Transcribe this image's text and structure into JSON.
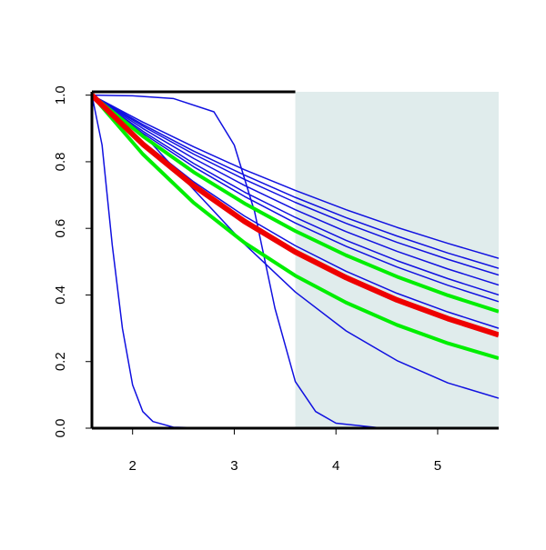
{
  "chart_data": {
    "type": "line",
    "xlim": [
      1.6,
      5.6
    ],
    "ylim": [
      0,
      1.01
    ],
    "xticks": [
      2,
      3,
      4,
      5
    ],
    "yticks": [
      {
        "value": 0,
        "label": "0.0"
      },
      0.2,
      0.4,
      0.6,
      0.8,
      {
        "value": 1,
        "label": "1.0"
      }
    ],
    "shaded_region": {
      "x": [
        3.6,
        5.6
      ],
      "color": "#e0ecec"
    },
    "series": [
      {
        "color": "#1010e0",
        "width": 1.5,
        "x": [
          1.6,
          2.1,
          2.6,
          3.1,
          3.6,
          4.1,
          4.6,
          5.1,
          5.6
        ],
        "values": [
          1,
          0.919,
          0.845,
          0.776,
          0.714,
          0.656,
          0.603,
          0.555,
          0.51
        ]
      },
      {
        "color": "#1010e0",
        "width": 1.5,
        "x": [
          1.6,
          2.1,
          2.6,
          3.1,
          3.6,
          4.1,
          4.6,
          5.1,
          5.6
        ],
        "values": [
          1,
          0.912,
          0.832,
          0.76,
          0.693,
          0.632,
          0.577,
          0.526,
          0.48
        ]
      },
      {
        "color": "#1010e0",
        "width": 1.5,
        "x": [
          1.6,
          2.1,
          2.6,
          3.1,
          3.6,
          4.1,
          4.6,
          5.1,
          5.6
        ],
        "values": [
          1,
          0.907,
          0.823,
          0.747,
          0.678,
          0.615,
          0.558,
          0.507,
          0.46
        ]
      },
      {
        "color": "#1010e0",
        "width": 1.5,
        "x": [
          1.6,
          2.1,
          2.6,
          3.1,
          3.6,
          4.1,
          4.6,
          5.1,
          5.6
        ],
        "values": [
          1,
          0.9,
          0.81,
          0.729,
          0.656,
          0.59,
          0.531,
          0.478,
          0.43
        ]
      },
      {
        "color": "#1010e0",
        "width": 1.5,
        "x": [
          1.6,
          2.1,
          2.6,
          3.1,
          3.6,
          4.1,
          4.6,
          5.1,
          5.6
        ],
        "values": [
          1,
          0.892,
          0.795,
          0.709,
          0.633,
          0.564,
          0.503,
          0.449,
          0.4
        ]
      },
      {
        "color": "#1010e0",
        "width": 1.5,
        "x": [
          1.6,
          2.1,
          2.6,
          3.1,
          3.6,
          4.1,
          4.6,
          5.1,
          5.6
        ],
        "values": [
          1,
          0.886,
          0.785,
          0.696,
          0.616,
          0.546,
          0.484,
          0.429,
          0.38
        ]
      },
      {
        "color": "#1010e0",
        "width": 1.5,
        "x": [
          1.6,
          2.1,
          2.6,
          3.1,
          3.6,
          4.1,
          4.6,
          5.1,
          5.6
        ],
        "values": [
          1,
          0.86,
          0.74,
          0.637,
          0.548,
          0.471,
          0.405,
          0.349,
          0.3
        ]
      },
      {
        "color": "#1010e0",
        "width": 1.5,
        "x": [
          1.6,
          2.1,
          2.6,
          3.1,
          3.6,
          4.1,
          4.6,
          5.1,
          5.6
        ],
        "values": [
          1,
          0.884,
          0.717,
          0.553,
          0.409,
          0.292,
          0.203,
          0.136,
          0.09
        ]
      },
      {
        "color": "#1010e0",
        "width": 1.5,
        "x": [
          1.6,
          1.7,
          1.8,
          1.9,
          2.0,
          2.1,
          2.2,
          2.4,
          2.8,
          5.6
        ],
        "values": [
          1,
          0.85,
          0.55,
          0.3,
          0.13,
          0.05,
          0.02,
          0.003,
          0,
          0
        ]
      },
      {
        "color": "#1010e0",
        "width": 1.5,
        "x": [
          1.6,
          2.0,
          2.4,
          2.8,
          3.0,
          3.2,
          3.4,
          3.6,
          3.8,
          4.0,
          4.4,
          5.6
        ],
        "values": [
          1,
          0.998,
          0.99,
          0.95,
          0.85,
          0.65,
          0.36,
          0.14,
          0.05,
          0.015,
          0.002,
          0
        ]
      },
      {
        "color": "#00ee00",
        "width": 4,
        "x": [
          1.6,
          2.1,
          2.6,
          3.1,
          3.6,
          4.1,
          4.6,
          5.1,
          5.6
        ],
        "values": [
          1,
          0.877,
          0.769,
          0.675,
          0.592,
          0.519,
          0.455,
          0.399,
          0.35
        ]
      },
      {
        "color": "#00ee00",
        "width": 4,
        "x": [
          1.6,
          2.1,
          2.6,
          3.1,
          3.6,
          4.1,
          4.6,
          5.1,
          5.6
        ],
        "values": [
          1,
          0.823,
          0.677,
          0.557,
          0.458,
          0.377,
          0.31,
          0.255,
          0.21
        ]
      },
      {
        "color": "#ee0000",
        "width": 6,
        "x": [
          1.6,
          2.1,
          2.6,
          3.1,
          3.6,
          4.1,
          4.6,
          5.1,
          5.6
        ],
        "values": [
          1,
          0.853,
          0.728,
          0.621,
          0.529,
          0.452,
          0.385,
          0.329,
          0.28
        ]
      }
    ]
  }
}
